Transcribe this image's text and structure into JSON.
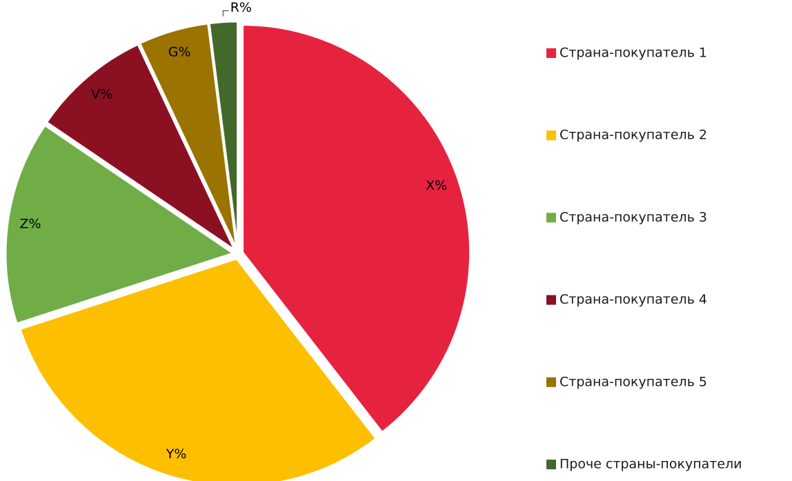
{
  "chart_data": {
    "type": "pie",
    "categories": [
      "Страна-покупатель 1",
      "Страна-покупатель 2",
      "Страна-покупатель 3",
      "Страна-покупатель 4",
      "Страна-покупатель 5",
      "Проче страны-покупатели"
    ],
    "values": [
      39.5,
      30.5,
      14.5,
      8.5,
      5,
      2
    ],
    "value_labels": [
      "X%",
      "Y%",
      "Z%",
      "V%",
      "G%",
      "R%"
    ],
    "colors": [
      "#e5233f",
      "#fdbf00",
      "#70ad47",
      "#8b1122",
      "#9a7300",
      "#43682b"
    ],
    "legend": "right"
  }
}
